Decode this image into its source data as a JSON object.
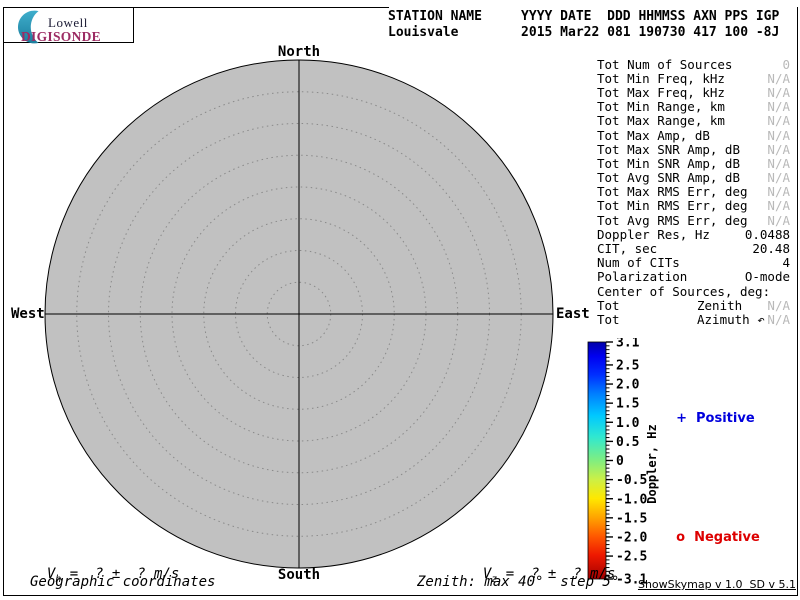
{
  "logo": {
    "line1": "Lowell",
    "line2": "DIGISONDE",
    "crescent_color_top": "#3FAECC",
    "crescent_color_bottom": "#1B7E9E",
    "lowell_color": "#1b1b35",
    "digisonde_color": "#9C2B63"
  },
  "header": {
    "labels_line": "STATION NAME     YYYY DATE  DDD HHMMSS AXN PPS IGP",
    "values_line": "Louisvale        2015 Mar22 081 190730 417 100 -8J",
    "station_name": "Louisvale",
    "year": "2015",
    "date": "Mar22",
    "day_of_year": "081",
    "time_hhmmss": "190730",
    "axn": "417",
    "pps": "100",
    "igp": "-8J"
  },
  "skymap": {
    "compass": {
      "north": "North",
      "south": "South",
      "east": "East",
      "west": "West"
    },
    "zenith_max_deg": 40,
    "zenith_step_deg": 5,
    "num_rings": 8,
    "fill_color": "#C1C1C1",
    "ring_color": "#8A8A8A"
  },
  "stats": {
    "rows": [
      {
        "label": "Tot Num of Sources",
        "value": "0",
        "dim": true
      },
      {
        "label": "Tot Min Freq, kHz",
        "value": "N/A",
        "dim": true
      },
      {
        "label": "Tot Max Freq, kHz",
        "value": "N/A",
        "dim": true
      },
      {
        "label": "Tot Min Range, km",
        "value": "N/A",
        "dim": true
      },
      {
        "label": "Tot Max Range, km",
        "value": "N/A",
        "dim": true
      },
      {
        "label": "Tot Max Amp, dB",
        "value": "N/A",
        "dim": true
      },
      {
        "label": "Tot Max SNR Amp, dB",
        "value": "N/A",
        "dim": true
      },
      {
        "label": "Tot Min SNR Amp, dB",
        "value": "N/A",
        "dim": true
      },
      {
        "label": "Tot Avg SNR Amp, dB",
        "value": "N/A",
        "dim": true
      },
      {
        "label": "Tot Max RMS Err, deg",
        "value": "N/A",
        "dim": true
      },
      {
        "label": "Tot Min RMS Err, deg",
        "value": "N/A",
        "dim": true
      },
      {
        "label": "Tot Avg RMS Err, deg",
        "value": "N/A",
        "dim": true
      },
      {
        "label": "Doppler Res, Hz",
        "value": "0.0488",
        "dim": false
      },
      {
        "label": "CIT, sec",
        "value": "20.48",
        "dim": false
      },
      {
        "label": "Num of CITs",
        "value": "4",
        "dim": false
      },
      {
        "label": "Polarization",
        "value": "O-mode",
        "dim": false
      },
      {
        "label": "Center of Sources, deg:",
        "value": "",
        "dim": false
      },
      {
        "label": "Tot",
        "mid": "Zenith",
        "value": "N/A",
        "dim": true
      },
      {
        "label": "Tot",
        "mid": "Azimuth ↶",
        "value": "N/A",
        "dim": true
      }
    ]
  },
  "colorbar": {
    "axis_label": "Doppler, Hz",
    "max": 3.1,
    "min": -3.1,
    "tick_labels": [
      "3.1",
      "2.5",
      "2.0",
      "1.5",
      "1.0",
      "0.5",
      "0",
      "-0.5",
      "-1.0",
      "-1.5",
      "-2.0",
      "-2.5",
      "-3.1"
    ],
    "tick_values": [
      3.1,
      2.5,
      2.0,
      1.5,
      1.0,
      0.5,
      0,
      -0.5,
      -1.0,
      -1.5,
      -2.0,
      -2.5,
      -3.1
    ],
    "minor_step": 0.1,
    "gradient_stops": [
      [
        0.0,
        "#0000A8"
      ],
      [
        0.06,
        "#0000F0"
      ],
      [
        0.14,
        "#0030FF"
      ],
      [
        0.22,
        "#0080FF"
      ],
      [
        0.31,
        "#00C8FF"
      ],
      [
        0.4,
        "#30E8D0"
      ],
      [
        0.5,
        "#80EE80"
      ],
      [
        0.58,
        "#CCF046"
      ],
      [
        0.66,
        "#FFE800"
      ],
      [
        0.74,
        "#FFA400"
      ],
      [
        0.82,
        "#FF5800"
      ],
      [
        0.9,
        "#EE1800"
      ],
      [
        1.0,
        "#A40000"
      ]
    ],
    "positive": {
      "marker": "+",
      "label": "Positive",
      "color": "#0000DD"
    },
    "negative": {
      "marker": "o",
      "label": "Negative",
      "color": "#DD0000"
    }
  },
  "footer": {
    "vh": {
      "var": "V",
      "sub": "h",
      "expr": " =  ? ±  ? m/s"
    },
    "vz": {
      "var": "V",
      "sub": "z",
      "expr": " =  ? ±  ? m/s"
    },
    "coords_note": "Geographic coordinates",
    "zenith_note": "Zenith: max 40°  step 5°",
    "version": "ShowSkymap v 1.0  SD v 5.1"
  }
}
